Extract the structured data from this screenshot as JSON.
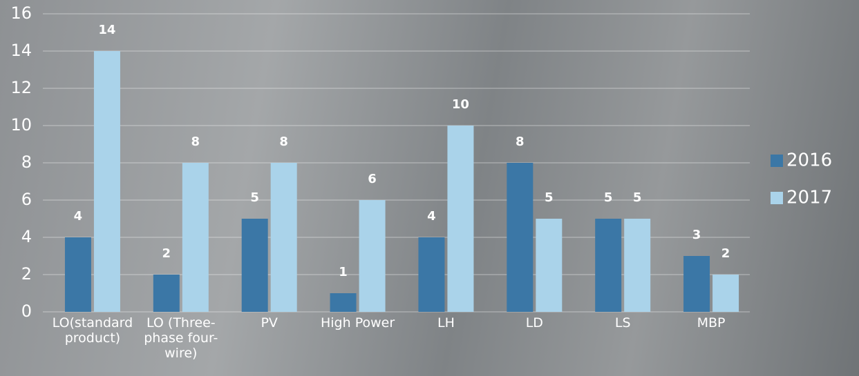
{
  "chart_data": {
    "type": "bar",
    "categories": [
      "LO(standard product)",
      "LO (Three-phase four-wire)",
      "PV",
      "High Power",
      "LH",
      "LD",
      "LS",
      "MBP"
    ],
    "series": [
      {
        "name": "2016",
        "color": "#3b77a6",
        "values": [
          4,
          2,
          5,
          1,
          4,
          8,
          5,
          3
        ]
      },
      {
        "name": "2017",
        "color": "#aad3ea",
        "values": [
          14,
          8,
          8,
          6,
          10,
          5,
          5,
          2
        ]
      }
    ],
    "ylim": [
      0,
      16
    ],
    "yticks": [
      0,
      2,
      4,
      6,
      8,
      10,
      12,
      14,
      16
    ],
    "grid": true,
    "legend": "right"
  }
}
